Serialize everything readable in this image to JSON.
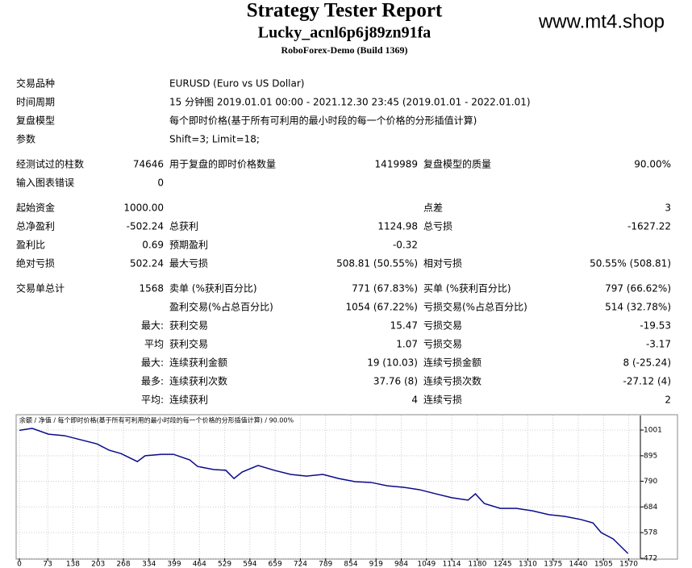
{
  "header": {
    "title": "Strategy Tester Report",
    "subtitle": "Lucky_acnl6p6j89zn91fa",
    "server": "RoboForex-Demo (Build 1369)",
    "watermark": "www.mt4.shop"
  },
  "table": {
    "sections": [
      [
        [
          "交易品种",
          "EURUSD (Euro vs US Dollar)"
        ],
        [
          "时间周期",
          "15 分钟图 2019.01.01 00:00 - 2021.12.30 23:45 (2019.01.01 - 2022.01.01)"
        ],
        [
          "复盘模型",
          "每个即时价格(基于所有可利用的最小时段的每一个价格的分形插值计算)"
        ],
        [
          "参数",
          "Shift=3; Limit=18;"
        ]
      ],
      [
        [
          "经测试过的柱数",
          "74646",
          "用于复盘的即时价格数量",
          "1419989",
          "复盘模型的质量",
          "90.00%"
        ],
        [
          "输入图表错误",
          "0",
          null,
          null,
          null,
          null
        ]
      ],
      [
        [
          "起始资金",
          "1000.00",
          null,
          null,
          "点差",
          "3"
        ],
        [
          "总净盈利",
          "-502.24",
          "总获利",
          "1124.98",
          "总亏损",
          "-1627.22"
        ],
        [
          "盈利比",
          "0.69",
          "预期盈利",
          "-0.32",
          null,
          null
        ],
        [
          "绝对亏损",
          "502.24",
          "最大亏损",
          "508.81 (50.55%)",
          "相对亏损",
          "50.55% (508.81)"
        ]
      ],
      [
        [
          "交易单总计",
          "1568",
          "卖单 (%获利百分比)",
          "771 (67.83%)",
          "买单 (%获利百分比)",
          "797 (66.62%)"
        ],
        [
          null,
          null,
          "盈利交易(%占总百分比)",
          "1054 (67.22%)",
          "亏损交易(%占总百分比)",
          "514 (32.78%)"
        ],
        [
          null,
          "最大:",
          "获利交易",
          "15.47",
          "亏损交易",
          "-19.53"
        ],
        [
          null,
          "平均",
          "获利交易",
          "1.07",
          "亏损交易",
          "-3.17"
        ],
        [
          null,
          "最大:",
          "连续获利金额",
          "19 (10.03)",
          "连续亏损金额",
          "8 (-25.24)"
        ],
        [
          null,
          "最多:",
          "连续获利次数",
          "37.76 (8)",
          "连续亏损次数",
          "-27.12 (4)"
        ],
        [
          null,
          "平均:",
          "连续获利",
          "4",
          "连续亏损",
          "2"
        ]
      ]
    ]
  },
  "chart_data": {
    "type": "line",
    "title": "余额 / 净值 / 每个即时价格(基于所有可利用的最小时段的每一个价格的分形插值计算) / 90.00%",
    "x": [
      0,
      33,
      75,
      116,
      158,
      200,
      231,
      262,
      304,
      324,
      366,
      397,
      439,
      459,
      501,
      532,
      553,
      574,
      615,
      657,
      699,
      740,
      782,
      823,
      865,
      906,
      948,
      990,
      1031,
      1073,
      1114,
      1156,
      1175,
      1198,
      1239,
      1281,
      1322,
      1364,
      1405,
      1447,
      1478,
      1499,
      1530,
      1568
    ],
    "series": [
      {
        "name": "余额",
        "color": "#0a0a8c",
        "values": [
          1000,
          1008,
          984,
          978,
          961,
          944,
          918,
          904,
          871,
          895,
          901,
          901,
          878,
          851,
          838,
          835,
          801,
          828,
          855,
          835,
          818,
          811,
          818,
          801,
          788,
          785,
          771,
          765,
          755,
          738,
          722,
          712,
          738,
          698,
          678,
          678,
          668,
          652,
          645,
          632,
          618,
          578,
          552,
          492
        ]
      }
    ],
    "xlim": [
      0,
      1600
    ],
    "ylim": [
      472,
      1061
    ],
    "xticks": [
      0,
      73,
      138,
      203,
      268,
      334,
      399,
      464,
      529,
      594,
      659,
      724,
      789,
      854,
      919,
      984,
      1049,
      1114,
      1180,
      1245,
      1310,
      1375,
      1440,
      1505,
      1570
    ],
    "yticks": [
      1001,
      895,
      790,
      684,
      578,
      472
    ],
    "grid": true
  }
}
